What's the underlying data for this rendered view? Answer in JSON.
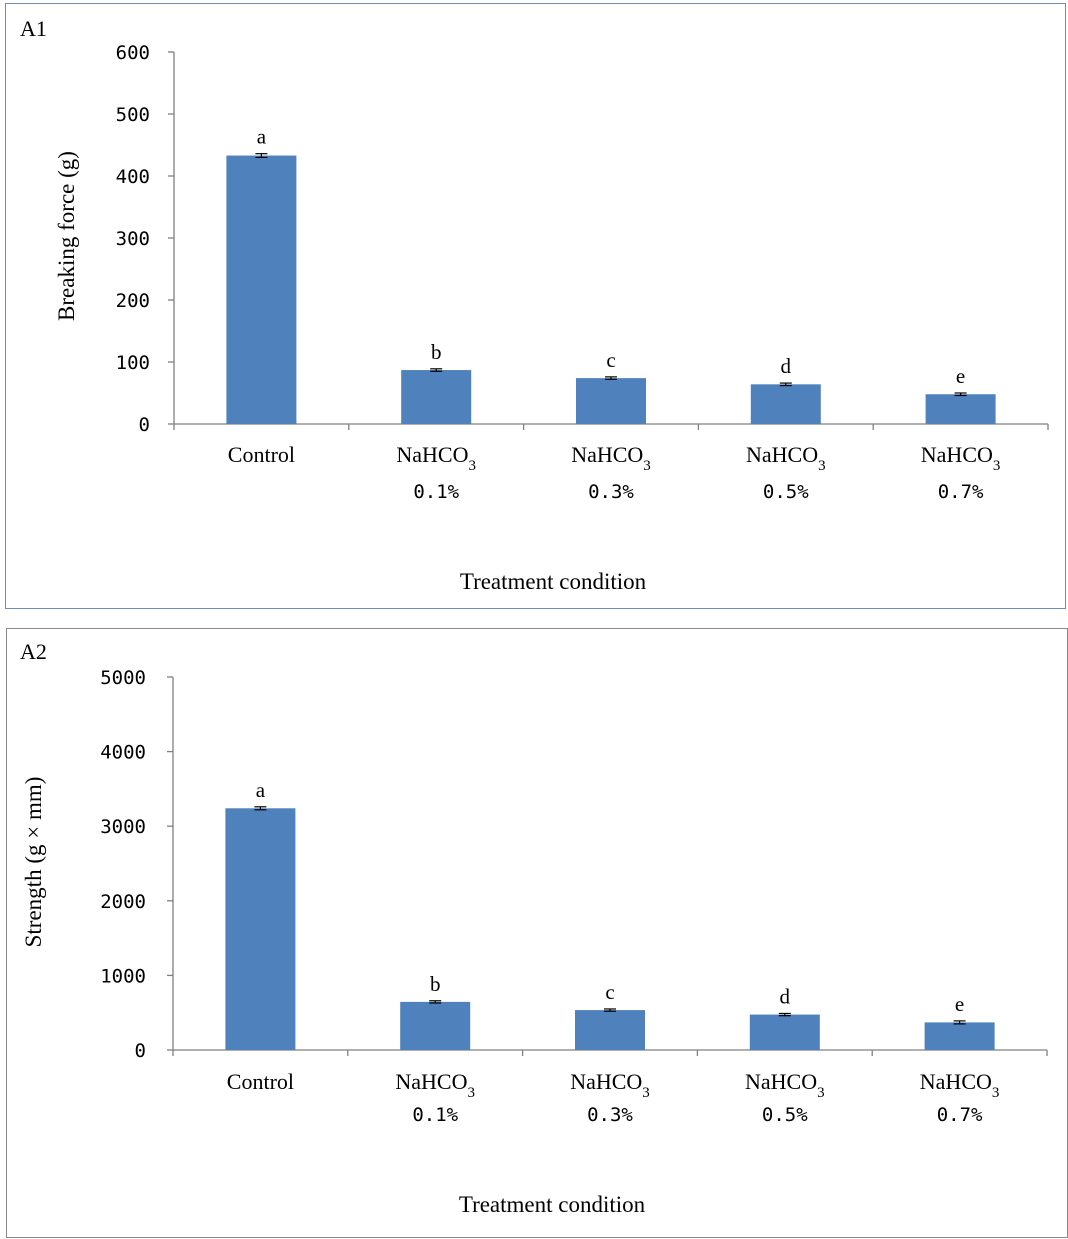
{
  "chart_data": [
    {
      "type": "bar",
      "panel_label": "A1",
      "categories": [
        {
          "name": "Control",
          "sub": ""
        },
        {
          "name": "NaHCO",
          "subscript": "3",
          "sub": "0.1%"
        },
        {
          "name": "NaHCO",
          "subscript": "3",
          "sub": "0.3%"
        },
        {
          "name": "NaHCO",
          "subscript": "3",
          "sub": "0.5%"
        },
        {
          "name": "NaHCO",
          "subscript": "3",
          "sub": "0.7%"
        }
      ],
      "values": [
        433,
        87,
        74,
        64,
        48
      ],
      "errors": [
        3,
        2,
        2,
        2,
        2
      ],
      "significance": [
        "a",
        "b",
        "c",
        "d",
        "e"
      ],
      "xlabel": "Treatment condition",
      "ylabel": "Breaking force (g)",
      "ylim": [
        0,
        600
      ],
      "yticks": [
        0,
        100,
        200,
        300,
        400,
        500,
        600
      ],
      "bar_color": "#4f81bd",
      "grid": false
    },
    {
      "type": "bar",
      "panel_label": "A2",
      "categories": [
        {
          "name": "Control",
          "sub": ""
        },
        {
          "name": "NaHCO",
          "subscript": "3",
          "sub": "0.1%"
        },
        {
          "name": "NaHCO",
          "subscript": "3",
          "sub": "0.3%"
        },
        {
          "name": "NaHCO",
          "subscript": "3",
          "sub": "0.5%"
        },
        {
          "name": "NaHCO",
          "subscript": "3",
          "sub": "0.7%"
        }
      ],
      "values": [
        3240,
        645,
        535,
        475,
        370
      ],
      "errors": [
        20,
        15,
        15,
        15,
        20
      ],
      "significance": [
        "a",
        "b",
        "c",
        "d",
        "e"
      ],
      "xlabel": "Treatment condition",
      "ylabel": "Strength (g × mm)",
      "ylim": [
        0,
        5000
      ],
      "yticks": [
        0,
        1000,
        2000,
        3000,
        4000,
        5000
      ],
      "bar_color": "#4f81bd",
      "grid": false
    }
  ]
}
